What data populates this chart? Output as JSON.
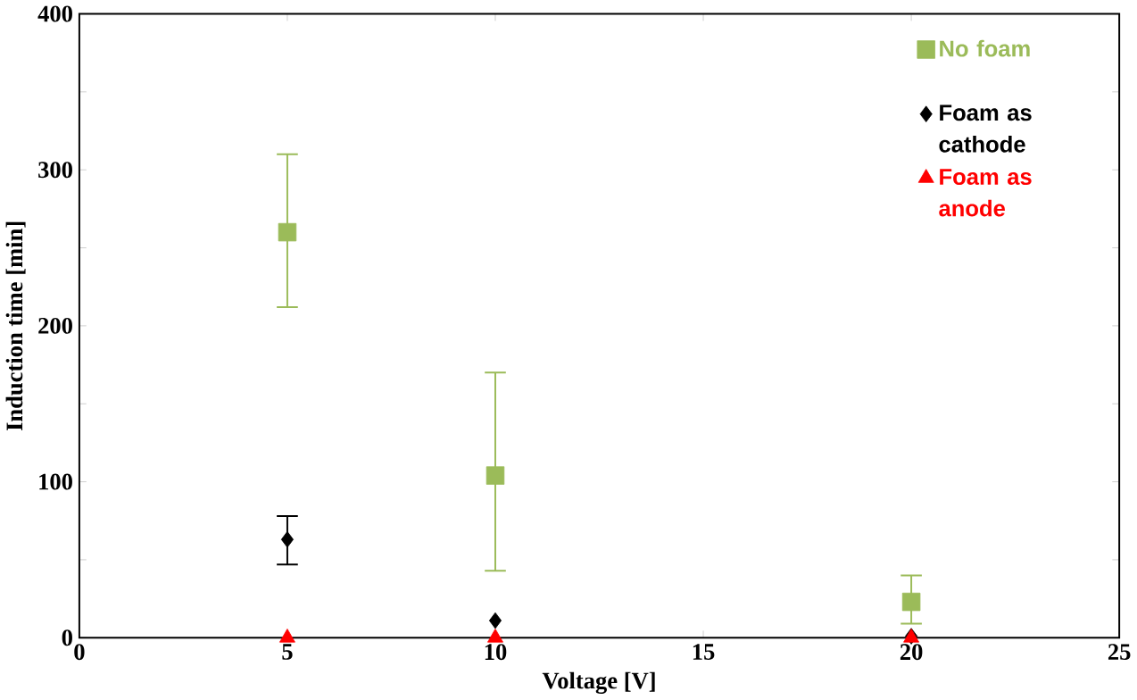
{
  "chart_data": {
    "type": "scatter",
    "xlabel": "Voltage [V]",
    "ylabel": "Induction time [min]",
    "xlim": [
      0,
      25
    ],
    "xticks": [
      0,
      5,
      10,
      15,
      20,
      25
    ],
    "ylim": [
      0,
      400
    ],
    "yticks": [
      0,
      {
        "value": 50,
        "label": null
      },
      100,
      {
        "value": 150,
        "label": null
      },
      200,
      {
        "value": 250,
        "label": null
      },
      300,
      {
        "value": 350,
        "label": null
      },
      400
    ],
    "legend": "top right",
    "grid": false,
    "series": [
      {
        "name": "No foam",
        "color": "#9bbb59",
        "marker": "square",
        "x": [
          5,
          10,
          20
        ],
        "values": [
          260,
          104,
          23
        ],
        "errors": [
          [
            212,
            310
          ],
          [
            43,
            170
          ],
          [
            9,
            40
          ]
        ]
      },
      {
        "name": "Foam as cathode",
        "color": "#000000",
        "marker": "diamond",
        "x": [
          5,
          10,
          20
        ],
        "values": [
          63,
          11,
          1
        ],
        "errors": [
          [
            47,
            78
          ],
          null,
          null
        ]
      },
      {
        "name": "Foam as anode",
        "color": "#ff0000",
        "marker": "triangle",
        "x": [
          5,
          10,
          20
        ],
        "values": [
          0,
          0,
          0
        ]
      }
    ]
  }
}
